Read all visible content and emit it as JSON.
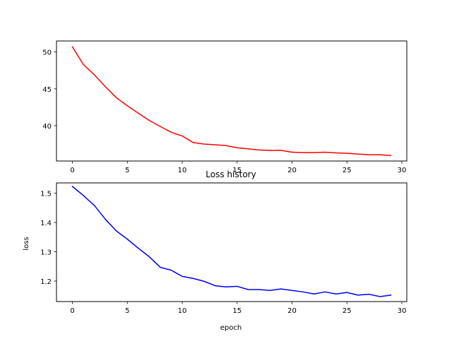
{
  "chart_data": [
    {
      "type": "line",
      "title": "",
      "xlabel": "",
      "ylabel": "",
      "xlim": [
        -1.45,
        30.45
      ],
      "ylim": [
        35.2,
        51.5
      ],
      "xticks": [
        0,
        5,
        10,
        15,
        20,
        25,
        30
      ],
      "yticks": [
        40,
        45,
        50
      ],
      "grid": false,
      "series": [
        {
          "color": "#ff0000",
          "x": [
            0,
            1,
            2,
            3,
            4,
            5,
            6,
            7,
            8,
            9,
            10,
            11,
            12,
            13,
            14,
            15,
            16,
            17,
            18,
            19,
            20,
            21,
            22,
            23,
            24,
            25,
            26,
            27,
            28,
            29
          ],
          "y": [
            50.7,
            48.3,
            46.9,
            45.3,
            43.8,
            42.7,
            41.7,
            40.7,
            39.9,
            39.1,
            38.6,
            37.7,
            37.5,
            37.4,
            37.3,
            37.0,
            36.85,
            36.7,
            36.65,
            36.65,
            36.4,
            36.35,
            36.35,
            36.4,
            36.3,
            36.25,
            36.15,
            36.05,
            36.05,
            35.95
          ]
        }
      ]
    },
    {
      "type": "line",
      "title": "Loss history",
      "xlabel": "epoch",
      "ylabel": "loss",
      "xlim": [
        -1.45,
        30.45
      ],
      "ylim": [
        1.13,
        1.535
      ],
      "xticks": [
        0,
        5,
        10,
        15,
        20,
        25,
        30
      ],
      "yticks": [
        1.2,
        1.3,
        1.4,
        1.5
      ],
      "grid": false,
      "series": [
        {
          "color": "#0000ff",
          "x": [
            0,
            1,
            2,
            3,
            4,
            5,
            6,
            7,
            8,
            9,
            10,
            11,
            12,
            13,
            14,
            15,
            16,
            17,
            18,
            19,
            20,
            21,
            22,
            23,
            24,
            25,
            26,
            27,
            28,
            29
          ],
          "y": [
            1.523,
            1.492,
            1.458,
            1.411,
            1.371,
            1.343,
            1.312,
            1.283,
            1.247,
            1.237,
            1.216,
            1.209,
            1.199,
            1.184,
            1.18,
            1.182,
            1.171,
            1.171,
            1.168,
            1.173,
            1.168,
            1.163,
            1.156,
            1.163,
            1.156,
            1.161,
            1.152,
            1.155,
            1.147,
            1.152
          ]
        }
      ]
    }
  ]
}
